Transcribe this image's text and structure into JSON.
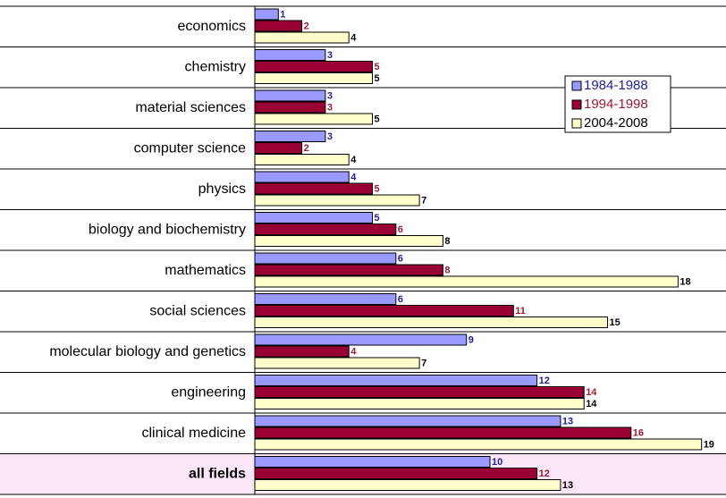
{
  "chart_data": {
    "type": "hbar",
    "categories": [
      "economics",
      "chemistry",
      "material sciences",
      "computer science",
      "physics",
      "biology and biochemistry",
      "mathematics",
      "social sciences",
      "molecular biology and genetics",
      "engineering",
      "clinical medicine",
      "all fields"
    ],
    "series": [
      {
        "name": "1984-1988",
        "color": "#9999ff",
        "label_color": "#1f1f99",
        "values": [
          1,
          3,
          3,
          3,
          4,
          5,
          6,
          6,
          9,
          12,
          13,
          10
        ]
      },
      {
        "name": "1994-1998",
        "color": "#990033",
        "label_color": "#9b1b30",
        "values": [
          2,
          5,
          3,
          2,
          5,
          6,
          8,
          11,
          4,
          14,
          16,
          12
        ]
      },
      {
        "name": "2004-2008",
        "color": "#ffffcc",
        "label_color": "#000000",
        "values": [
          4,
          5,
          5,
          4,
          7,
          8,
          18,
          15,
          7,
          14,
          19,
          13
        ]
      }
    ],
    "xlim": [
      0,
      20
    ],
    "highlight": "all fields",
    "legend": "upper right"
  }
}
